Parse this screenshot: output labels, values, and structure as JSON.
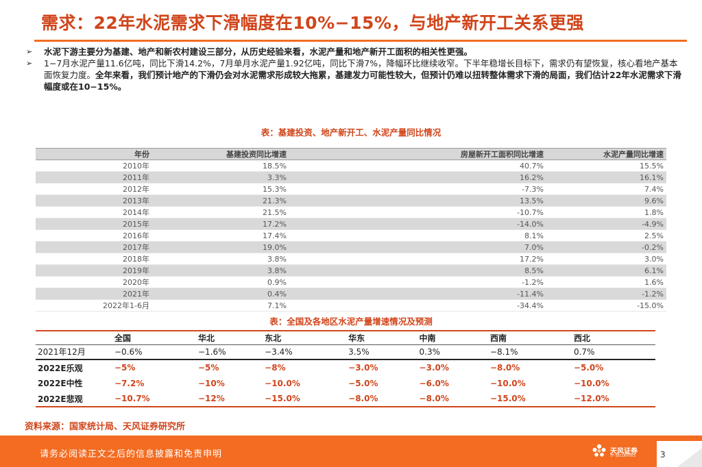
{
  "title": "需求：22年水泥需求下滑幅度在10%−15%，与地产新开工关系更强",
  "bullets": [
    {
      "bold": "水泥下游主要分为基建、地产和新农村建设三部分，从历史经验来看，水泥产量和地产新开工面积的相关性更强。",
      "normal": "",
      "bold2": ""
    },
    {
      "bold": "",
      "normal": "1−7月水泥产量11.6亿吨，同比下滑14.2%，7月单月水泥产量1.92亿吨，同比下滑7%，降幅环比继续收窄。下半年稳增长目标下，需求仍有望恢复，核心看地产基本面恢复力度。",
      "bold2": "全年来看，我们预计地产的下滑仍会对水泥需求形成较大拖累，基建发力可能性较大，但预计仍难以扭转整体需求下滑的局面，我们估计22年水泥需求下滑幅度或在10−15%。"
    }
  ],
  "table1": {
    "caption": "表：基建投资、地产新开工、水泥产量同比情况",
    "headers": [
      "年份",
      "基建投资同比增速",
      "房屋新开工面积同比增速",
      "水泥产量同比增速"
    ],
    "rows": [
      [
        "2010年",
        "18.5%",
        "40.7%",
        "15.5%"
      ],
      [
        "2011年",
        "3.3%",
        "16.2%",
        "16.1%"
      ],
      [
        "2012年",
        "15.3%",
        "-7.3%",
        "7.4%"
      ],
      [
        "2013年",
        "21.3%",
        "13.5%",
        "9.6%"
      ],
      [
        "2014年",
        "21.5%",
        "-10.7%",
        "1.8%"
      ],
      [
        "2015年",
        "17.2%",
        "-14.0%",
        "-4.9%"
      ],
      [
        "2016年",
        "17.4%",
        "8.1%",
        "2.5%"
      ],
      [
        "2017年",
        "19.0%",
        "7.0%",
        "-0.2%"
      ],
      [
        "2018年",
        "3.8%",
        "17.2%",
        "3.0%"
      ],
      [
        "2019年",
        "3.8%",
        "8.5%",
        "6.1%"
      ],
      [
        "2020年",
        "0.9%",
        "-1.2%",
        "1.6%"
      ],
      [
        "2021年",
        "0.4%",
        "-11.4%",
        "-1.2%"
      ],
      [
        "2022年1-6月",
        "7.1%",
        "-34.4%",
        "-15.0%"
      ]
    ]
  },
  "table2": {
    "caption": "表：全国及各地区水泥产量增速情况及预测",
    "headers": [
      "",
      "全国",
      "华北",
      "东北",
      "华东",
      "中南",
      "西南",
      "西北"
    ],
    "actual": [
      "2021年12月",
      "−0.6%",
      "−1.6%",
      "−3.4%",
      "3.5%",
      "0.3%",
      "−8.1%",
      "0.7%"
    ],
    "forecasts": [
      [
        "2022E乐观",
        "−5%",
        "−5%",
        "−8%",
        "−3.0%",
        "−3.0%",
        "−8.0%",
        "−5.0%"
      ],
      [
        "2022E中性",
        "−7.2%",
        "−10%",
        "−10.0%",
        "−5.0%",
        "−6.0%",
        "−10.0%",
        "−10.0%"
      ],
      [
        "2022E悲观",
        "−10.7%",
        "−12%",
        "−15.0%",
        "−8.0%",
        "−8.0%",
        "−15.0%",
        "−12.0%"
      ]
    ]
  },
  "source": "资料来源：国家统计局、天风证券研究所",
  "footer": {
    "disclaimer": "请务必阅读正文之后的信息披露和免责申明",
    "logo_name": "天风证券",
    "logo_en": "TF SECURITIES",
    "page": "3"
  },
  "colors": {
    "accent": "#f36c21",
    "title": "#d0451b",
    "band": "#d9d9d9"
  }
}
